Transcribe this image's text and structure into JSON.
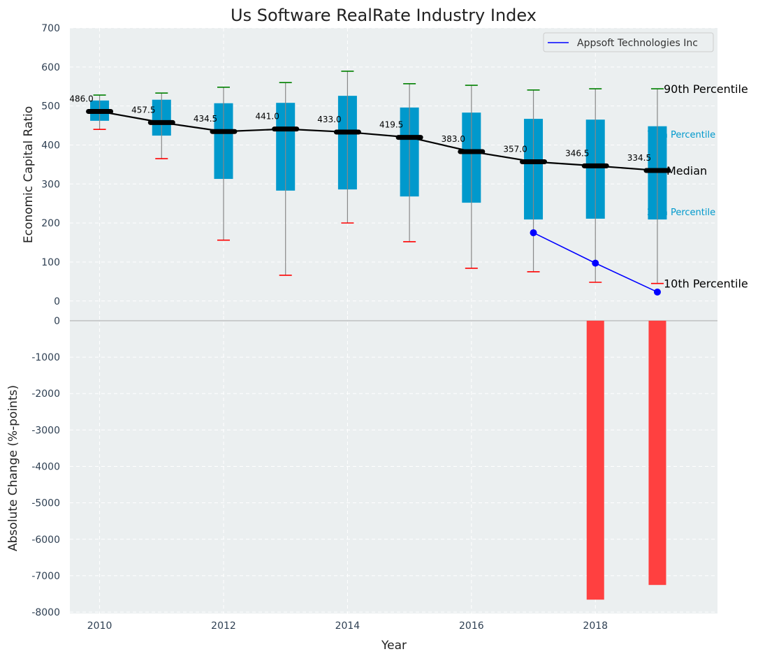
{
  "chart_data": [
    {
      "type": "box",
      "title": "Us Software RealRate Industry Index",
      "xlabel": "",
      "ylabel": "Economic Capital Ratio",
      "ylim": [
        -38,
        700
      ],
      "xlim": [
        2009.52,
        2019.97
      ],
      "yticks": [
        0,
        100,
        200,
        300,
        400,
        500,
        600,
        700
      ],
      "grid": true,
      "years": [
        2010,
        2011,
        2012,
        2013,
        2014,
        2015,
        2016,
        2017,
        2018,
        2019
      ],
      "p10": [
        440,
        365,
        156,
        66,
        200,
        152,
        84,
        75,
        48,
        45
      ],
      "p25": [
        462,
        424,
        313,
        283,
        286,
        268,
        252,
        209,
        211,
        209
      ],
      "median": [
        486.0,
        457.5,
        434.5,
        441.0,
        433.0,
        419.5,
        383.0,
        357.0,
        346.5,
        334.5
      ],
      "median_labels": [
        "486.0",
        "457.5",
        "434.5",
        "441.0",
        "433.0",
        "419.5",
        "383.0",
        "357.0",
        "346.5",
        "334.5"
      ],
      "p75": [
        514,
        516,
        507,
        508,
        526,
        496,
        483,
        467,
        465,
        448
      ],
      "p90": [
        528,
        533,
        548,
        560,
        589,
        557,
        553,
        541,
        544,
        544
      ],
      "series": [
        {
          "name": "Appsoft Technologies Inc",
          "x": [
            2017,
            2018,
            2019
          ],
          "values": [
            175,
            97,
            23
          ],
          "color": "#0000ff"
        }
      ],
      "legend": {
        "placement": "top-right",
        "entries": [
          "Appsoft Technologies Inc"
        ]
      },
      "annotations": [
        "90th Percentile",
        "75th Percentile",
        "Median",
        "25th Percentile",
        "10th Percentile"
      ],
      "colors": {
        "box": "#0099cc",
        "median": "#000000",
        "cap_top": "#008000",
        "cap_bottom": "#ff0000",
        "whisker": "#888888",
        "background": "#ebeff0"
      }
    },
    {
      "type": "bar",
      "xlabel": "Year",
      "ylabel": "Absolute Change (%-points)",
      "ylim": [
        -8038,
        134
      ],
      "yticks": [
        0,
        -1000,
        -2000,
        -3000,
        -4000,
        -5000,
        -6000,
        -7000,
        -8000
      ],
      "xticks": [
        2010,
        2012,
        2014,
        2016,
        2018
      ],
      "categories": [
        2018,
        2019
      ],
      "values": [
        -7658,
        -7255
      ],
      "color": "#ff4040"
    }
  ]
}
